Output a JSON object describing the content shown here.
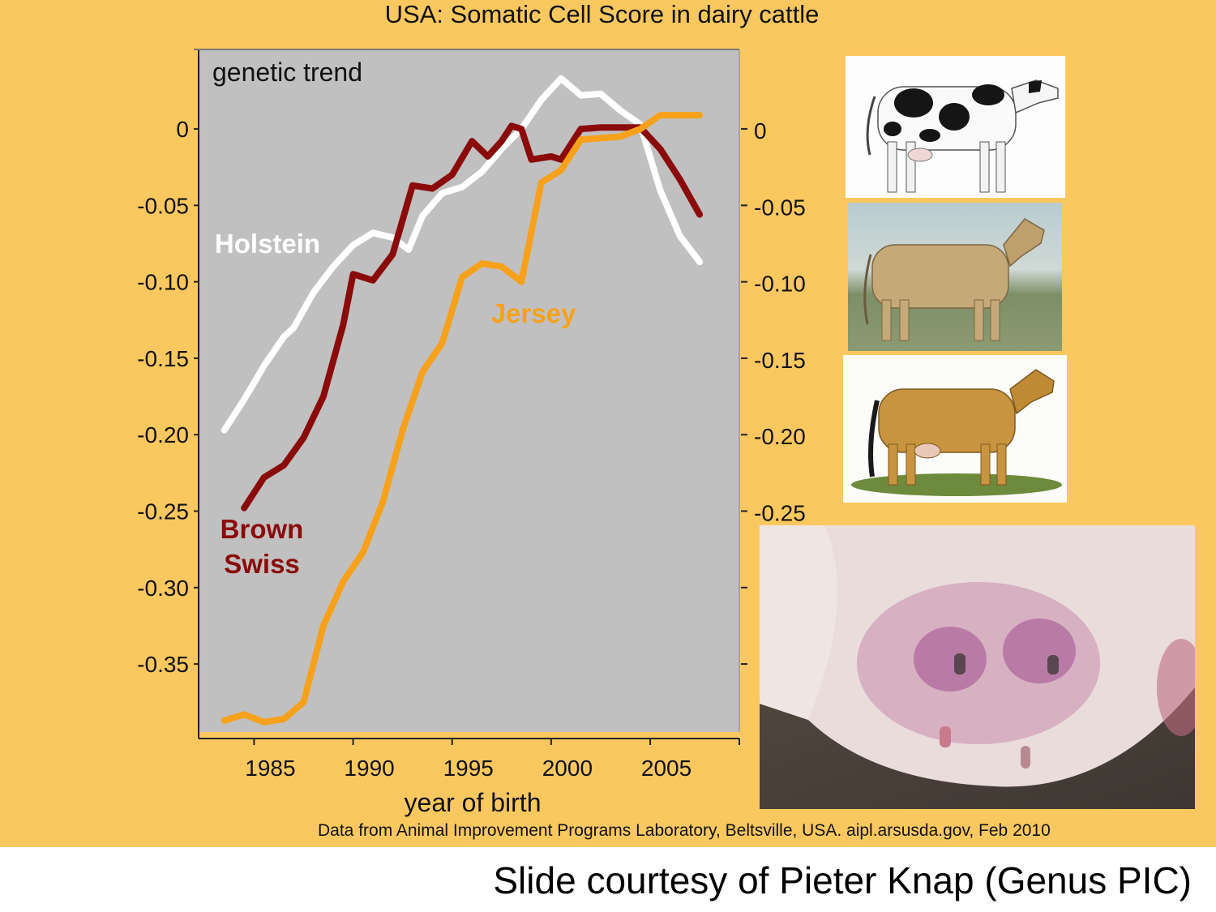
{
  "slide": {
    "title": "USA: Somatic Cell Score in dairy cattle",
    "source_note": "Data from Animal Improvement Programs Laboratory, Beltsville, USA. aipl.arsusda.gov, Feb 2010",
    "courtesy": "Slide courtesy of Pieter Knap (Genus PIC)",
    "photos": [
      {
        "subject": "holstein-cow"
      },
      {
        "subject": "brown-swiss-cow"
      },
      {
        "subject": "jersey-cow"
      },
      {
        "subject": "udder-mastitis"
      }
    ]
  },
  "chart_data": {
    "type": "line",
    "title": "",
    "panel_label": "genetic trend",
    "xlabel": "year of birth",
    "ylabel": "",
    "xlim": [
      1982.2,
      2009.5
    ],
    "ylim": [
      -0.3945,
      0.052
    ],
    "x_ticks": [
      1985,
      1990,
      1995,
      2000,
      2005
    ],
    "y_ticks": [
      0,
      -0.05,
      -0.1,
      -0.15,
      -0.2,
      -0.25,
      -0.3,
      -0.35
    ],
    "y_tick_labels": [
      "0",
      "-0.05",
      "-0.10",
      "-0.15",
      "-0.20",
      "-0.25",
      "-0.30",
      "-0.35"
    ],
    "y_tick_labels_right": [
      "0",
      "-0.05",
      "-0.10",
      "-0.15",
      "-0.20",
      "-0.25"
    ],
    "background": "#c0c0c0",
    "grid": false,
    "legend": "inline labels next to each line",
    "series": [
      {
        "name": "Holstein",
        "color": "#ffffff",
        "label_lines": [
          "Holstein"
        ],
        "x": [
          1983.5,
          1984.5,
          1985.5,
          1986.5,
          1987,
          1988,
          1989,
          1990,
          1991,
          1992,
          1992.8,
          1993.5,
          1994.5,
          1995.5,
          1996.5,
          1997.5,
          1998.5,
          1999.5,
          2000.5,
          2001.5,
          2002.5,
          2003.5,
          2004.5,
          2005.5,
          2006.5,
          2007.5
        ],
        "y": [
          -0.197,
          -0.177,
          -0.155,
          -0.136,
          -0.13,
          -0.107,
          -0.09,
          -0.076,
          -0.068,
          -0.071,
          -0.079,
          -0.057,
          -0.042,
          -0.038,
          -0.028,
          -0.013,
          0.0,
          0.019,
          0.033,
          0.022,
          0.023,
          0.012,
          0.003,
          -0.04,
          -0.07,
          -0.087
        ]
      },
      {
        "name": "Brown Swiss",
        "color": "#8b0a0a",
        "label_lines": [
          "Brown",
          "Swiss"
        ],
        "x": [
          1984.5,
          1985.5,
          1986.5,
          1987.5,
          1988.5,
          1989.5,
          1990,
          1991,
          1992,
          1993,
          1994,
          1995,
          1996,
          1996.8,
          1997.5,
          1998,
          1998.5,
          1999,
          2000,
          2000.5,
          2001.5,
          2002.5,
          2003.5,
          2004.5,
          2005.5,
          2006.5,
          2007.5
        ],
        "y": [
          -0.248,
          -0.228,
          -0.22,
          -0.202,
          -0.175,
          -0.128,
          -0.095,
          -0.099,
          -0.082,
          -0.037,
          -0.039,
          -0.03,
          -0.008,
          -0.018,
          -0.008,
          0.002,
          0.0,
          -0.02,
          -0.018,
          -0.02,
          0.0,
          0.001,
          0.001,
          0.001,
          -0.013,
          -0.033,
          -0.056
        ]
      },
      {
        "name": "Jersey",
        "color": "#f7a11b",
        "label_lines": [
          "Jersey"
        ],
        "x": [
          1983.5,
          1984.5,
          1985.5,
          1986.5,
          1987.5,
          1988.5,
          1989.5,
          1990.5,
          1991.5,
          1992.5,
          1993.5,
          1994.5,
          1995.5,
          1996.5,
          1997.5,
          1998.5,
          1999.5,
          2000.5,
          2001.5,
          2002.5,
          2003.5,
          2004.5,
          2005.5,
          2006.5,
          2007.5
        ],
        "y": [
          -0.387,
          -0.383,
          -0.388,
          -0.386,
          -0.375,
          -0.325,
          -0.296,
          -0.277,
          -0.244,
          -0.197,
          -0.159,
          -0.14,
          -0.097,
          -0.088,
          -0.09,
          -0.1,
          -0.035,
          -0.027,
          -0.007,
          -0.006,
          -0.005,
          0.0,
          0.009,
          0.009,
          0.009
        ]
      }
    ]
  }
}
